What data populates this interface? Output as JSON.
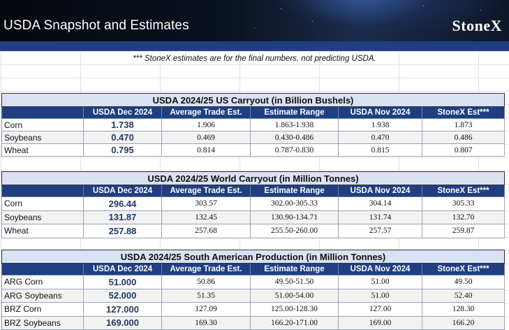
{
  "banner": {
    "title": "USDA Snapshot and Estimates",
    "brand": "StoneX"
  },
  "note": "*** StoneX estimates are for the final numbers, not predicting USDA.",
  "columns": [
    "",
    "USDA Dec 2024",
    "Average Trade Est.",
    "Estimate Range",
    "USDA Nov 2024",
    "StoneX Est***"
  ],
  "tables": [
    {
      "title": "USDA 2024/25 US Carryout (in Billion Bushels)",
      "rows": [
        {
          "label": "Corn",
          "usda_dec": "1.738",
          "avg_trade": "1.906",
          "range": "1.863-1.938",
          "usda_nov": "1.938",
          "stonex": "1.873"
        },
        {
          "label": "Soybeans",
          "usda_dec": "0.470",
          "avg_trade": "0.469",
          "range": "0.430-0.486",
          "usda_nov": "0.470",
          "stonex": "0.486"
        },
        {
          "label": "Wheat",
          "usda_dec": "0.795",
          "avg_trade": "0.814",
          "range": "0.787-0.830",
          "usda_nov": "0.815",
          "stonex": "0.807"
        }
      ]
    },
    {
      "title": "USDA 2024/25 World Carryout (in Million Tonnes)",
      "rows": [
        {
          "label": "Corn",
          "usda_dec": "296.44",
          "avg_trade": "303.57",
          "range": "302.00-305.33",
          "usda_nov": "304.14",
          "stonex": "305.33"
        },
        {
          "label": "Soybeans",
          "usda_dec": "131.87",
          "avg_trade": "132.45",
          "range": "130.90-134.71",
          "usda_nov": "131.74",
          "stonex": "132.70"
        },
        {
          "label": "Wheat",
          "usda_dec": "257.88",
          "avg_trade": "257.68",
          "range": "255.50-260.00",
          "usda_nov": "257.57",
          "stonex": "259.87"
        }
      ]
    },
    {
      "title": "USDA 2024/25 South American Production (in Million Tonnes)",
      "rows": [
        {
          "label": "ARG Corn",
          "usda_dec": "51.000",
          "avg_trade": "50.86",
          "range": "49.50-51.50",
          "usda_nov": "51.00",
          "stonex": "49.50"
        },
        {
          "label": "ARG Soybeans",
          "usda_dec": "52.000",
          "avg_trade": "51.35",
          "range": "51.00-54.00",
          "usda_nov": "51.00",
          "stonex": "52.40"
        },
        {
          "label": "BRZ Corn",
          "usda_dec": "127.000",
          "avg_trade": "127.09",
          "range": "125.00-128.30",
          "usda_nov": "127.00",
          "stonex": "128.30"
        },
        {
          "label": "BRZ Soybeans",
          "usda_dec": "169.000",
          "avg_trade": "169.30",
          "range": "166.20-171.00",
          "usda_nov": "169.00",
          "stonex": "166.20"
        }
      ]
    }
  ]
}
